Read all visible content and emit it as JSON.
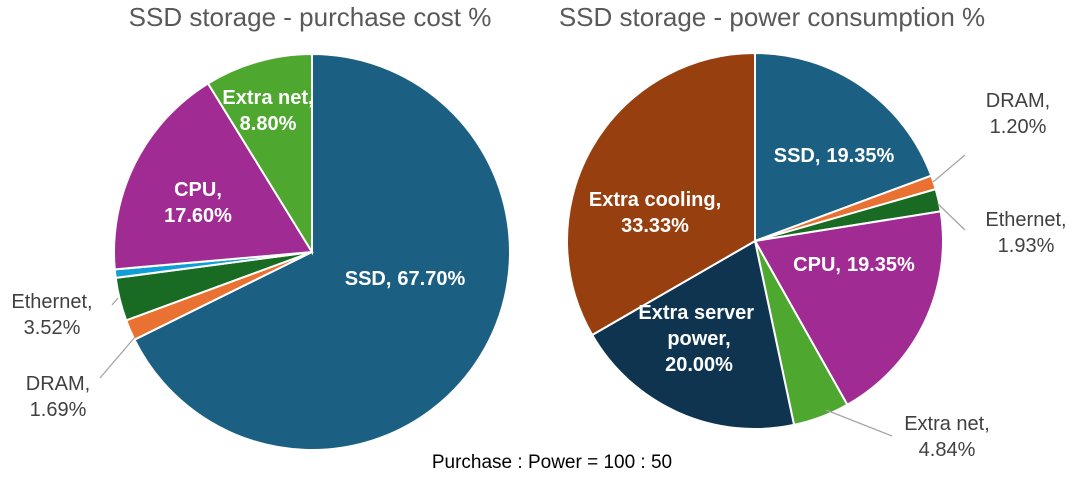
{
  "chart_data": [
    {
      "type": "pie",
      "title": "SSD storage - purchase cost %",
      "categories": [
        "SSD,",
        "DRAM,",
        "Ethernet,",
        null,
        "CPU,",
        "Extra net,"
      ],
      "values": [
        67.7,
        1.69,
        3.52,
        0.69,
        17.6,
        8.8
      ],
      "value_labels": [
        "67.70%",
        "1.69%",
        "3.52%",
        null,
        "17.60%",
        "8.80%"
      ],
      "colors": [
        "#1b6083",
        "#e97132",
        "#196b24",
        "#0f9ed5",
        "#a02b93",
        "#4ea72e"
      ]
    },
    {
      "type": "pie",
      "title": "SSD storage - power consumption %",
      "categories": [
        "SSD,",
        "DRAM,",
        "Ethernet,",
        "CPU,",
        "Extra net,",
        "Extra server power,",
        "Extra cooling,"
      ],
      "values": [
        19.35,
        1.2,
        1.93,
        19.35,
        4.84,
        20.0,
        33.33
      ],
      "value_labels": [
        "19.35%",
        "1.20%",
        "1.93%",
        "19.35%",
        "4.84%",
        "20.00%",
        "33.33%"
      ],
      "colors": [
        "#1b6083",
        "#e97132",
        "#196b24",
        "#a02b93",
        "#4ea72e",
        "#0e3450",
        "#973f0f"
      ]
    }
  ],
  "annotation": "Purchase : Power = 100 : 50"
}
